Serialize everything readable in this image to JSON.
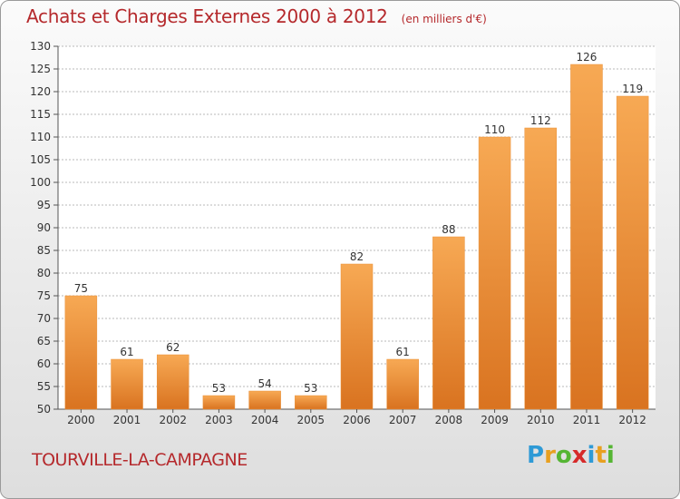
{
  "header": {
    "title": "Achats et Charges Externes 2000 à 2012",
    "subtitle": "(en milliers d'€)"
  },
  "footer": {
    "city": "TOURVILLE-LA-CAMPAGNE",
    "logo_letters": [
      "P",
      "r",
      "o",
      "x",
      "i",
      "t",
      "i"
    ],
    "logo_colors": [
      "#2e9ad6",
      "#e8a020",
      "#55b533",
      "#d62a2a",
      "#2e9ad6",
      "#e8a020",
      "#55b533"
    ]
  },
  "colors": {
    "bar_top": "#f7a954",
    "bar_bottom": "#d97320",
    "accent": "#b5292c",
    "grid": "#b8b8b8"
  },
  "chart_data": {
    "type": "bar",
    "title": "Achats et Charges Externes 2000 à 2012",
    "subtitle": "(en milliers d'€)",
    "categories": [
      "2000",
      "2001",
      "2002",
      "2003",
      "2004",
      "2005",
      "2006",
      "2007",
      "2008",
      "2009",
      "2010",
      "2011",
      "2012"
    ],
    "values": [
      75,
      61,
      62,
      53,
      54,
      53,
      82,
      61,
      88,
      110,
      112,
      126,
      119
    ],
    "ylim": [
      50,
      130
    ],
    "yticks": [
      50,
      55,
      60,
      65,
      70,
      75,
      80,
      85,
      90,
      95,
      100,
      105,
      110,
      115,
      120,
      125,
      130
    ],
    "grid": true,
    "data_labels": true
  }
}
